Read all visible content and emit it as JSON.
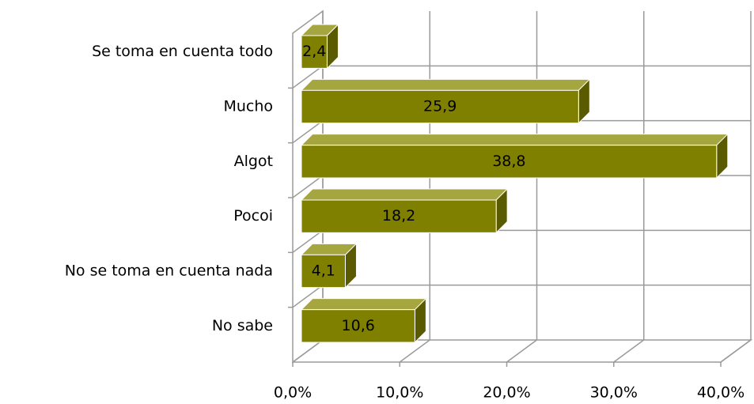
{
  "chart_data": {
    "type": "bar",
    "orientation": "horizontal",
    "three_d": true,
    "categories": [
      "Se toma en cuenta todo",
      "Mucho",
      "Algot",
      "Pocoi",
      "No se toma en cuenta nada",
      "No sabe"
    ],
    "values": [
      2.4,
      25.9,
      38.8,
      18.2,
      4.1,
      10.6
    ],
    "value_labels": [
      "2,4",
      "25,9",
      "38,8",
      "18,2",
      "4,1",
      "10,6"
    ],
    "color": "#808000",
    "xlim": [
      0,
      40
    ],
    "xticks": [
      {
        "value": 0,
        "label": "0,0%"
      },
      {
        "value": 10,
        "label": "10,0%"
      },
      {
        "value": 20,
        "label": "20,0%"
      },
      {
        "value": 30,
        "label": "30,0%"
      },
      {
        "value": 40,
        "label": "40,0%"
      }
    ],
    "grid": true
  }
}
